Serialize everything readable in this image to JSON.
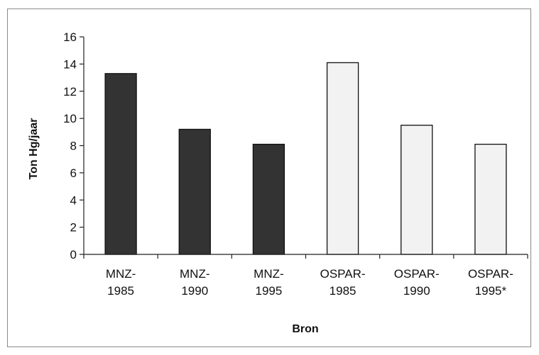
{
  "chart_data": {
    "type": "bar",
    "categories": [
      [
        "MNZ-",
        "1985"
      ],
      [
        "MNZ-",
        "1990"
      ],
      [
        "MNZ-",
        "1995"
      ],
      [
        "OSPAR-",
        "1985"
      ],
      [
        "OSPAR-",
        "1990"
      ],
      [
        "OSPAR-",
        "1995*"
      ]
    ],
    "values": [
      13.3,
      9.2,
      8.1,
      14.1,
      9.5,
      8.1
    ],
    "bar_colors": [
      "#333333",
      "#333333",
      "#333333",
      "#f2f2f2",
      "#f2f2f2",
      "#f2f2f2"
    ],
    "xlabel": "Bron",
    "ylabel": "Ton Hg/jaar",
    "ylim": [
      0,
      16
    ],
    "yticks": [
      0,
      2,
      4,
      6,
      8,
      10,
      12,
      14,
      16
    ],
    "grid": false,
    "legend": "none"
  }
}
